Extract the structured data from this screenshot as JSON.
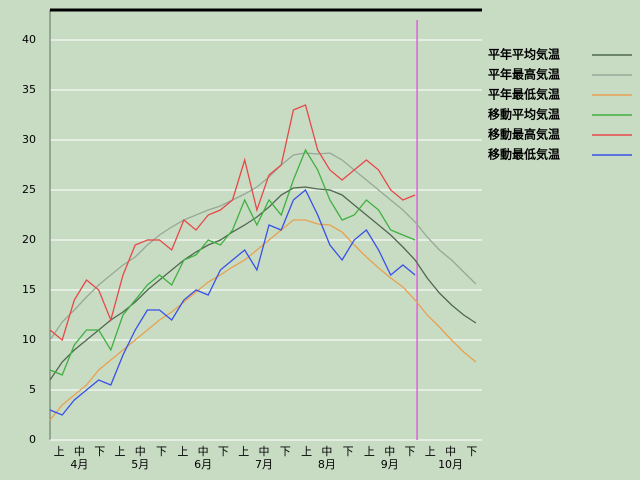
{
  "chart_data": {
    "type": "line",
    "x": [
      0,
      6,
      12,
      18,
      24,
      30,
      36,
      42,
      48,
      54,
      60,
      66,
      72,
      78,
      84,
      90,
      96,
      102,
      108,
      114,
      120,
      126,
      132,
      138,
      144,
      150,
      156,
      162,
      168,
      174,
      180,
      186,
      192,
      198,
      204,
      210
    ],
    "xlim": [
      0,
      213
    ],
    "ylim": [
      0,
      43
    ],
    "yticks": [
      0,
      5,
      10,
      15,
      20,
      25,
      30,
      35,
      40
    ],
    "xticks": [
      {
        "value": 4.5,
        "label": "上"
      },
      {
        "value": 14.5,
        "label": "中"
      },
      {
        "value": 24.5,
        "label": "下"
      },
      {
        "value": 34.5,
        "label": "上"
      },
      {
        "value": 44.5,
        "label": "中"
      },
      {
        "value": 55,
        "label": "下"
      },
      {
        "value": 65.5,
        "label": "上"
      },
      {
        "value": 75.5,
        "label": "中"
      },
      {
        "value": 85.5,
        "label": "下"
      },
      {
        "value": 95.5,
        "label": "上"
      },
      {
        "value": 105.5,
        "label": "中"
      },
      {
        "value": 116,
        "label": "下"
      },
      {
        "value": 126.5,
        "label": "上"
      },
      {
        "value": 136.5,
        "label": "中"
      },
      {
        "value": 147,
        "label": "下"
      },
      {
        "value": 157.5,
        "label": "上"
      },
      {
        "value": 167.5,
        "label": "中"
      },
      {
        "value": 177.5,
        "label": "下"
      },
      {
        "value": 187.5,
        "label": "上"
      },
      {
        "value": 197.5,
        "label": "中"
      },
      {
        "value": 208,
        "label": "下"
      }
    ],
    "month_labels": [
      {
        "value": 14.5,
        "label": "4月"
      },
      {
        "value": 44.5,
        "label": "5月"
      },
      {
        "value": 75.5,
        "label": "6月"
      },
      {
        "value": 105.5,
        "label": "7月"
      },
      {
        "value": 136.5,
        "label": "8月"
      },
      {
        "value": 167.5,
        "label": "9月"
      },
      {
        "value": 197.5,
        "label": "10月"
      }
    ],
    "grid": true,
    "marker_x": 181,
    "marker_color": "#e060e0",
    "series": [
      {
        "name": "平年平均気温",
        "color": "#506850",
        "values": [
          6,
          7.8,
          9,
          10,
          11,
          12,
          12.8,
          13.8,
          15,
          16,
          17,
          18,
          18.8,
          19.5,
          20,
          20.8,
          21.5,
          22.3,
          23.3,
          24.5,
          25.2,
          25.3,
          25.1,
          25,
          24.5,
          23.5,
          22.5,
          21.5,
          20.5,
          19.3,
          18,
          16.2,
          14.7,
          13.5,
          12.5,
          11.7
        ]
      },
      {
        "name": "平年最高気温",
        "color": "#98a898",
        "values": [
          10,
          11.8,
          13,
          14.3,
          15.5,
          16.5,
          17.5,
          18.3,
          19.5,
          20.5,
          21.3,
          22,
          22.5,
          23,
          23.4,
          24,
          24.6,
          25.3,
          26.3,
          27.5,
          28.5,
          28.7,
          28.6,
          28.7,
          28,
          27,
          26,
          25,
          24,
          23,
          21.8,
          20.3,
          19,
          18,
          16.8,
          15.6
        ]
      },
      {
        "name": "平年最低気温",
        "color": "#e8a050",
        "values": [
          2,
          3.5,
          4.5,
          5.5,
          7,
          8,
          9,
          10,
          11,
          12,
          12.8,
          13.8,
          14.8,
          15.8,
          16.5,
          17.3,
          18,
          19,
          20,
          21,
          22,
          22,
          21.6,
          21.5,
          20.8,
          19.5,
          18.3,
          17.2,
          16.2,
          15.3,
          14,
          12.5,
          11.3,
          10,
          8.8,
          7.8
        ]
      },
      {
        "name": "移動平均気温",
        "color": "#40b040",
        "values": [
          7,
          6.5,
          9.5,
          11,
          11,
          9,
          12.5,
          14,
          15.5,
          16.5,
          15.5,
          18,
          18.5,
          20,
          19.5,
          21,
          24,
          21.5,
          24,
          22.5,
          26,
          29,
          27,
          24,
          22,
          22.5,
          24,
          23,
          21,
          20.5,
          20,
          null,
          null,
          null,
          null,
          null
        ]
      },
      {
        "name": "移動最高気温",
        "color": "#e84848",
        "values": [
          11,
          10,
          14,
          16,
          15,
          12,
          16.5,
          19.5,
          20,
          20,
          19,
          22,
          21,
          22.5,
          23,
          24,
          28,
          23,
          26.5,
          27.5,
          33,
          33.5,
          29,
          27,
          26,
          27,
          28,
          27,
          25,
          24,
          24.5,
          null,
          null,
          null,
          null,
          null
        ]
      },
      {
        "name": "移動最低気温",
        "color": "#3850e8",
        "values": [
          3,
          2.5,
          4,
          5,
          6,
          5.5,
          8.5,
          11,
          13,
          13,
          12,
          14,
          15,
          14.5,
          17,
          18,
          19,
          17,
          21.5,
          21,
          24,
          25,
          22.5,
          19.5,
          18,
          20,
          21,
          19,
          16.5,
          17.5,
          16.5,
          null,
          null,
          null,
          null,
          null
        ]
      }
    ]
  }
}
